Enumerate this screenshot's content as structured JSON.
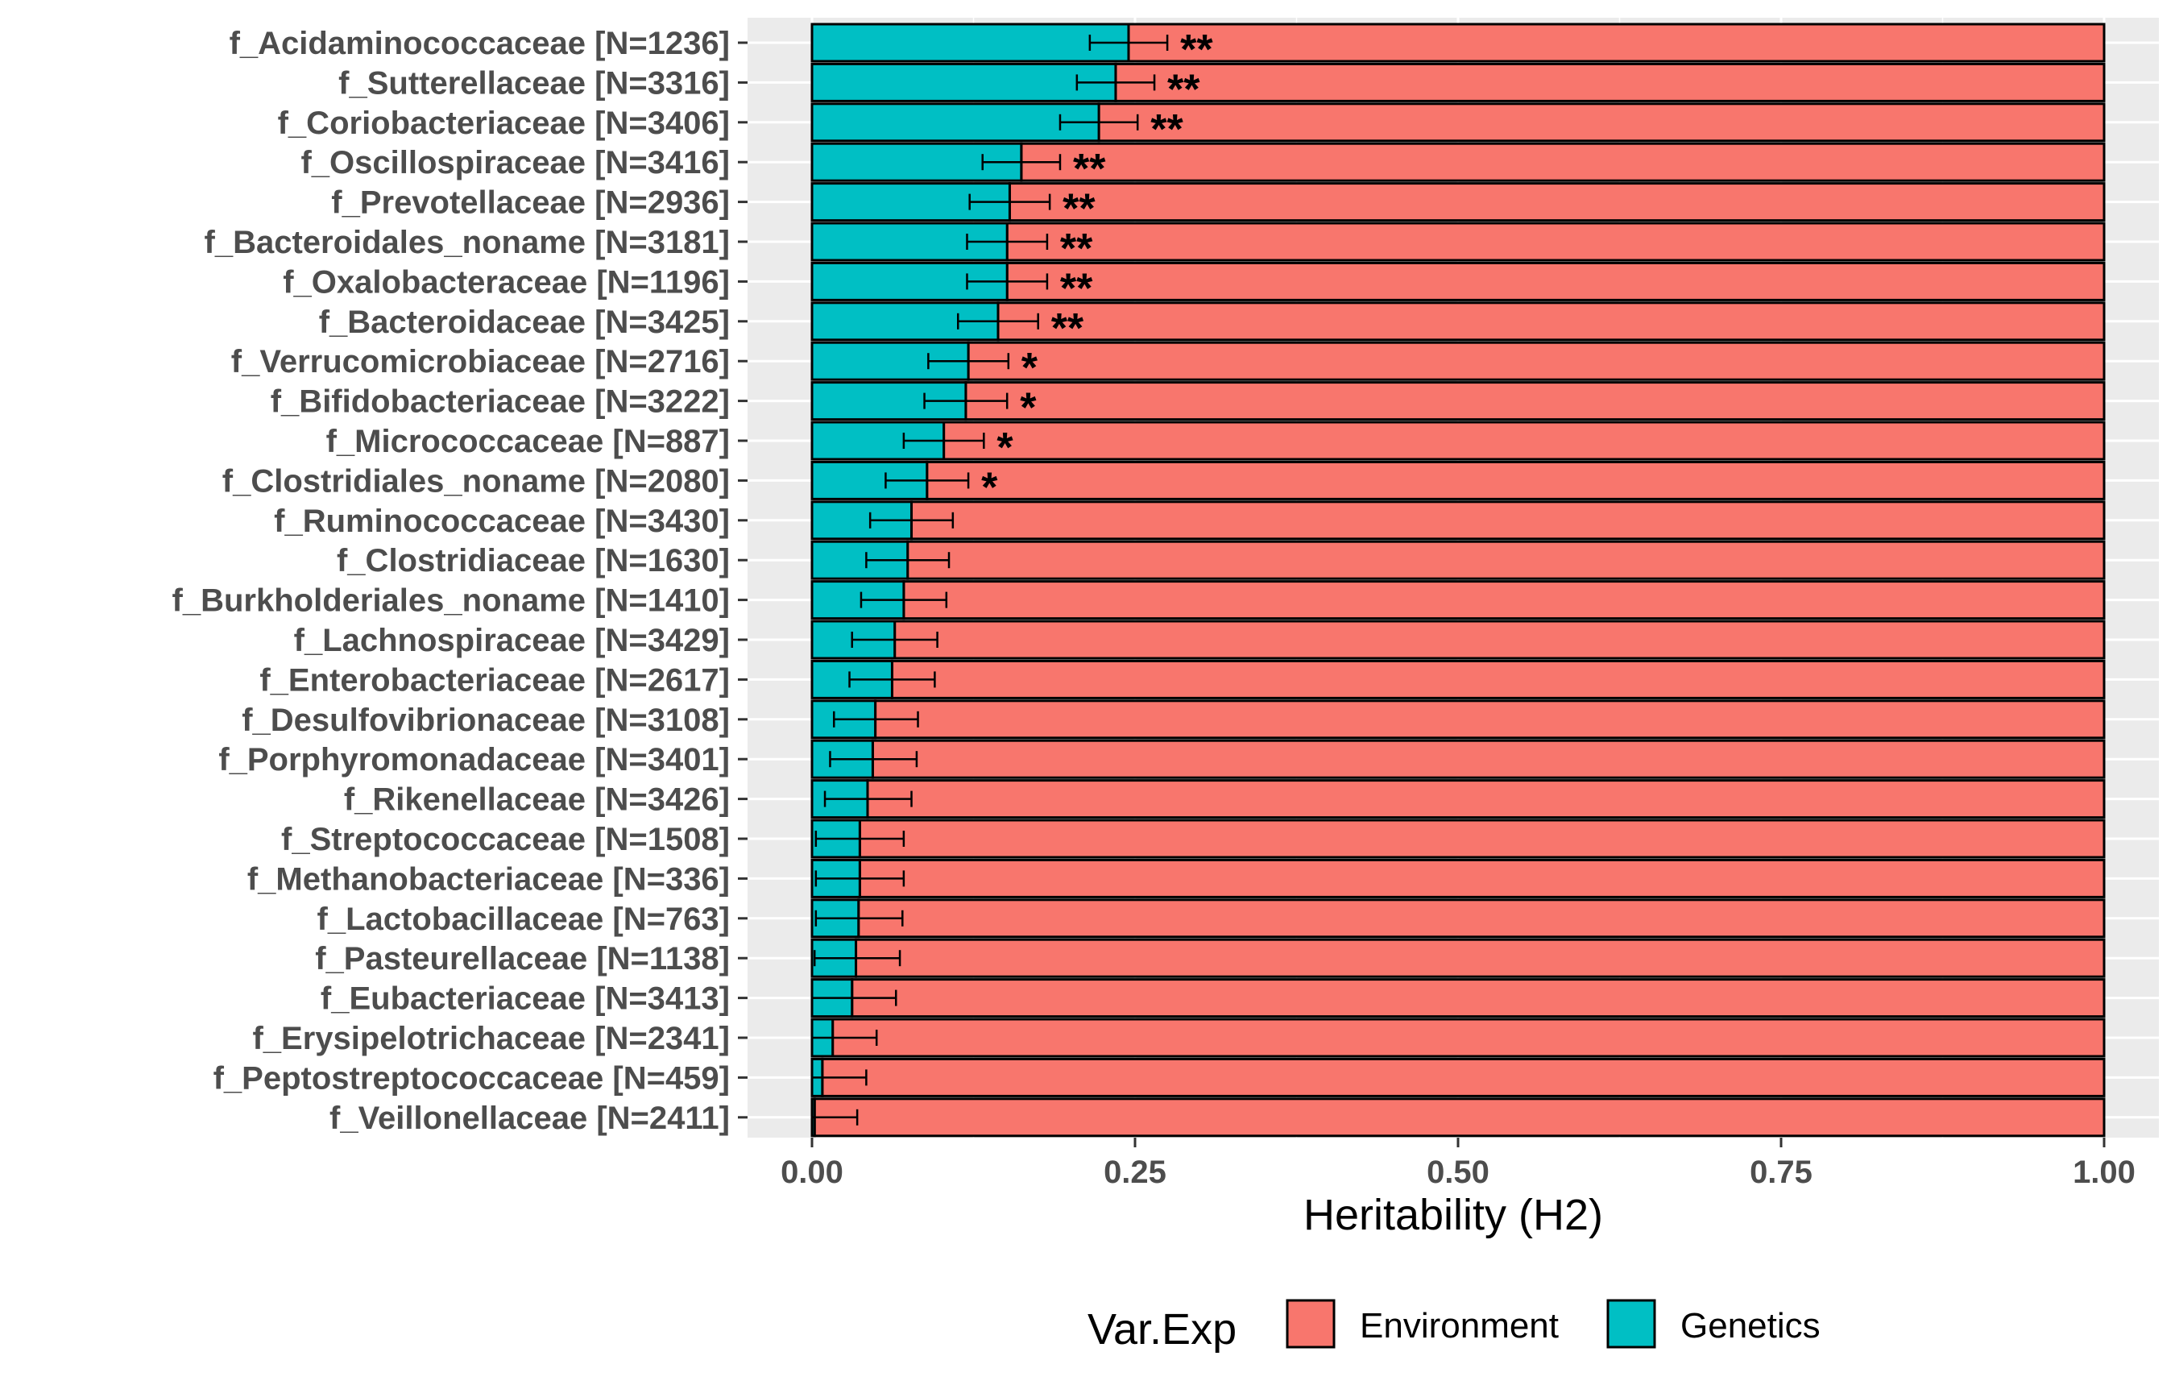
{
  "chart_data": {
    "type": "bar",
    "orientation": "horizontal",
    "stacked": true,
    "xlabel": "Heritability (H2)",
    "xlim": [
      0,
      1
    ],
    "xticks": [
      "0.00",
      "0.25",
      "0.50",
      "0.75",
      "1.00"
    ],
    "grid": true,
    "legend": {
      "title": "Var.Exp",
      "placement": "bottom",
      "entries": [
        {
          "name": "Environment",
          "color": "#F8766D"
        },
        {
          "name": "Genetics",
          "color": "#00BFC4"
        }
      ]
    },
    "categories": [
      "f_Acidaminococcaceae [N=1236]",
      "f_Sutterellaceae [N=3316]",
      "f_Coriobacteriaceae [N=3406]",
      "f_Oscillospiraceae [N=3416]",
      "f_Prevotellaceae [N=2936]",
      "f_Bacteroidales_noname [N=3181]",
      "f_Oxalobacteraceae [N=1196]",
      "f_Bacteroidaceae [N=3425]",
      "f_Verrucomicrobiaceae [N=2716]",
      "f_Bifidobacteriaceae [N=3222]",
      "f_Micrococcaceae [N=887]",
      "f_Clostridiales_noname [N=2080]",
      "f_Ruminococcaceae [N=3430]",
      "f_Clostridiaceae [N=1630]",
      "f_Burkholderiales_noname [N=1410]",
      "f_Lachnospiraceae [N=3429]",
      "f_Enterobacteriaceae [N=2617]",
      "f_Desulfovibrionaceae [N=3108]",
      "f_Porphyromonadaceae [N=3401]",
      "f_Rikenellaceae [N=3426]",
      "f_Streptococcaceae [N=1508]",
      "f_Methanobacteriaceae [N=336]",
      "f_Lactobacillaceae [N=763]",
      "f_Pasteurellaceae [N=1138]",
      "f_Eubacteriaceae [N=3413]",
      "f_Erysipelotrichaceae [N=2341]",
      "f_Peptostreptococcaceae [N=459]",
      "f_Veillonellaceae [N=2411]"
    ],
    "series": [
      {
        "name": "Genetics",
        "values": [
          0.245,
          0.235,
          0.222,
          0.162,
          0.153,
          0.151,
          0.151,
          0.144,
          0.121,
          0.119,
          0.102,
          0.089,
          0.077,
          0.074,
          0.071,
          0.064,
          0.062,
          0.049,
          0.047,
          0.043,
          0.037,
          0.037,
          0.036,
          0.034,
          0.031,
          0.016,
          0.008,
          0.002
        ]
      },
      {
        "name": "Environment",
        "values": [
          0.755,
          0.765,
          0.778,
          0.838,
          0.847,
          0.849,
          0.849,
          0.856,
          0.879,
          0.881,
          0.898,
          0.911,
          0.923,
          0.926,
          0.929,
          0.936,
          0.938,
          0.951,
          0.953,
          0.957,
          0.963,
          0.963,
          0.964,
          0.966,
          0.969,
          0.984,
          0.992,
          0.998
        ]
      }
    ],
    "error_bars": {
      "series": "Genetics",
      "lower": [
        0.215,
        0.205,
        0.192,
        0.132,
        0.122,
        0.12,
        0.12,
        0.113,
        0.09,
        0.087,
        0.071,
        0.057,
        0.045,
        0.042,
        0.038,
        0.031,
        0.029,
        0.017,
        0.014,
        0.01,
        0.003,
        0.003,
        0.003,
        0.002,
        0.0,
        0.0,
        0.0,
        0.0
      ],
      "upper": [
        0.275,
        0.265,
        0.252,
        0.192,
        0.184,
        0.182,
        0.182,
        0.175,
        0.152,
        0.151,
        0.133,
        0.121,
        0.109,
        0.106,
        0.104,
        0.097,
        0.095,
        0.082,
        0.081,
        0.077,
        0.071,
        0.071,
        0.07,
        0.068,
        0.065,
        0.05,
        0.042,
        0.035
      ]
    },
    "significance": [
      "**",
      "**",
      "**",
      "**",
      "**",
      "**",
      "**",
      "**",
      "*",
      "*",
      "*",
      "*",
      "",
      "",
      "",
      "",
      "",
      "",
      "",
      "",
      "",
      "",
      "",
      "",
      "",
      "",
      "",
      ""
    ]
  }
}
